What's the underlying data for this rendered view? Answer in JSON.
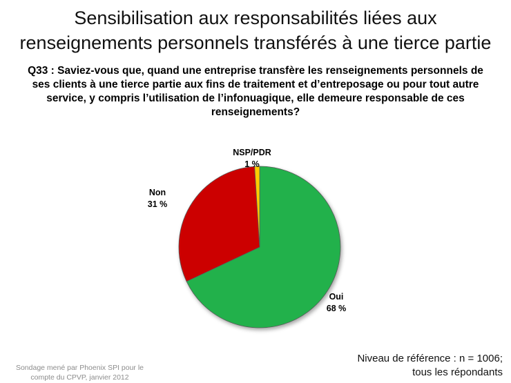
{
  "title_lines": [
    "Sensibilisation aux responsabilités liées aux",
    "renseignements personnels transférés à une tierce partie"
  ],
  "question_lines": [
    "Q33 : Saviez-vous que, quand une entreprise transfère les renseignements personnels de",
    "ses clients à une tierce partie aux fins de traitement  et d’entreposage ou pour tout autre",
    "service, y compris l’utilisation de l’infonuagique, elle demeure responsable de ces",
    "renseignements?"
  ],
  "chart_data": {
    "type": "pie",
    "slices": [
      {
        "label": "Oui",
        "value": 68,
        "value_label": "68 %",
        "color": "#22b14c"
      },
      {
        "label": "Non",
        "value": 31,
        "value_label": "31 %",
        "color": "#cc0000"
      },
      {
        "label": "NSP/PDR",
        "value": 1,
        "value_label": "1 %",
        "color": "#ffcc00"
      }
    ],
    "start": "12 o'clock",
    "direction": "clockwise"
  },
  "source_lines": [
    "Sondage mené par Phoenix SPI pour le",
    "compte du CPVP, janvier 2012"
  ],
  "base_lines": [
    "Niveau de référence : n = 1006;",
    "tous les répondants"
  ]
}
